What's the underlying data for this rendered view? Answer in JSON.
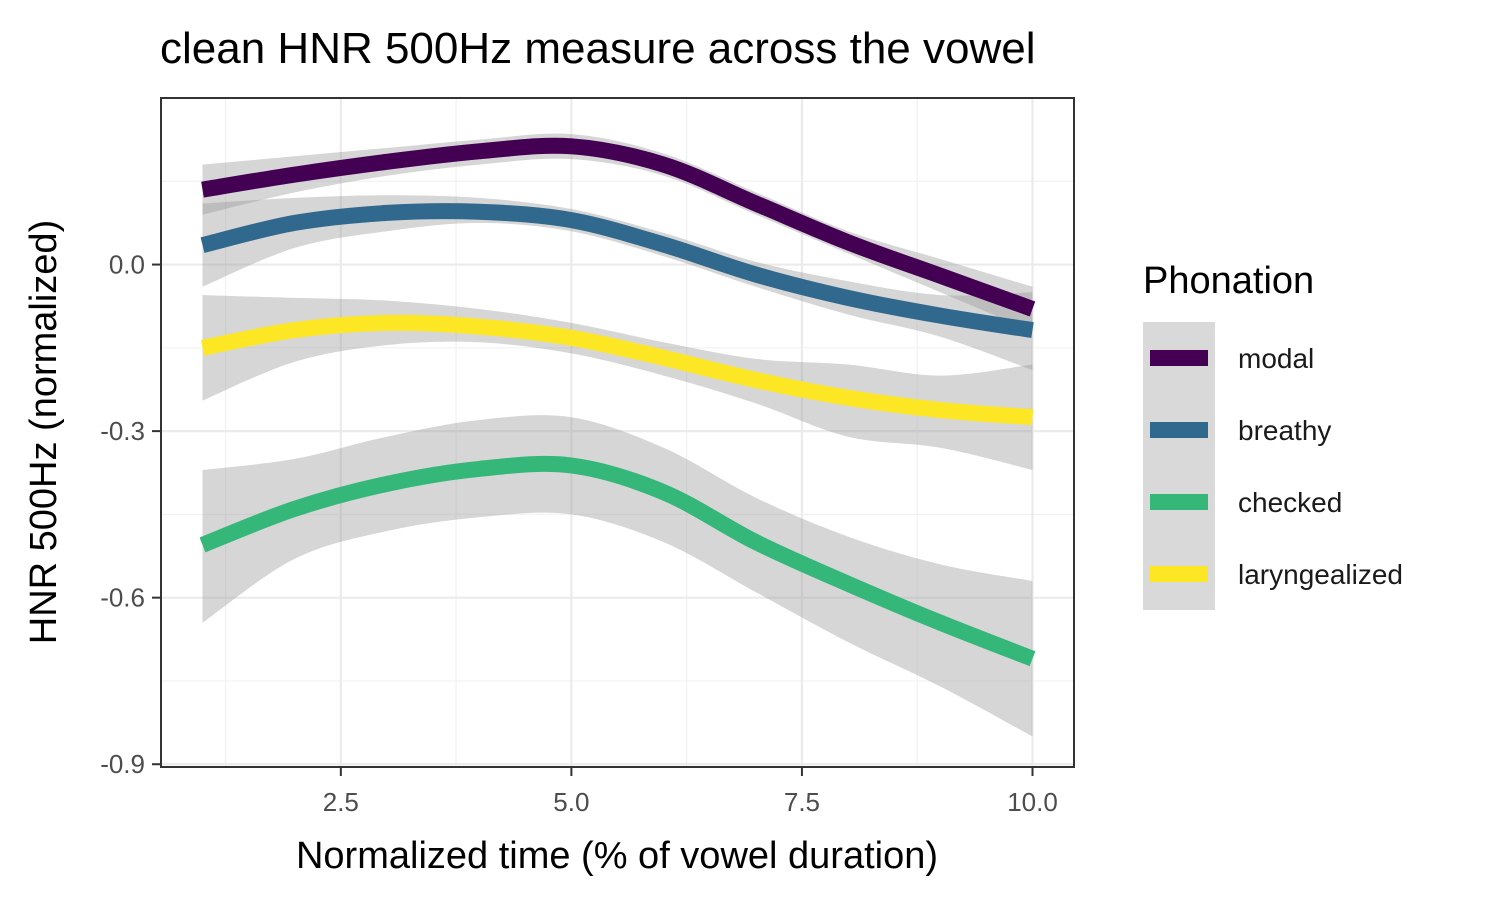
{
  "chart_data": {
    "type": "line",
    "title": "clean HNR 500Hz measure across the vowel",
    "xlabel": "Normalized time (% of vowel duration)",
    "ylabel": "HNR 500Hz (normalized)",
    "xlim": [
      0.55,
      10.45
    ],
    "ylim": [
      -0.905,
      0.3
    ],
    "x_ticks": [
      2.5,
      5.0,
      7.5,
      10.0
    ],
    "x_tick_labels": [
      "2.5",
      "5.0",
      "7.5",
      "10.0"
    ],
    "y_ticks": [
      -0.9,
      -0.6,
      -0.3,
      0.0
    ],
    "y_tick_labels": [
      "-0.9",
      "-0.6",
      "-0.3",
      "0.0"
    ],
    "grid": true,
    "legend": {
      "title": "Phonation",
      "position": "right"
    },
    "x": [
      1,
      2,
      3,
      4,
      5,
      6,
      7,
      8,
      9,
      10
    ],
    "series": [
      {
        "name": "modal",
        "color": "#440154",
        "values": [
          0.135,
          0.162,
          0.185,
          0.204,
          0.213,
          0.18,
          0.11,
          0.04,
          -0.02,
          -0.08
        ],
        "lower": [
          0.09,
          0.13,
          0.16,
          0.18,
          0.19,
          0.16,
          0.09,
          0.02,
          -0.05,
          -0.12
        ],
        "upper": [
          0.18,
          0.195,
          0.21,
          0.225,
          0.235,
          0.2,
          0.13,
          0.06,
          0.01,
          -0.04
        ]
      },
      {
        "name": "breathy",
        "color": "#31688e",
        "values": [
          0.035,
          0.075,
          0.093,
          0.095,
          0.08,
          0.036,
          -0.018,
          -0.06,
          -0.092,
          -0.118
        ],
        "lower": [
          -0.04,
          0.03,
          0.06,
          0.075,
          0.06,
          0.015,
          -0.04,
          -0.09,
          -0.13,
          -0.19
        ],
        "upper": [
          0.11,
          0.12,
          0.125,
          0.12,
          0.1,
          0.057,
          0.005,
          -0.03,
          -0.055,
          -0.05
        ]
      },
      {
        "name": "checked",
        "color": "#35b779",
        "values": [
          -0.505,
          -0.44,
          -0.395,
          -0.368,
          -0.362,
          -0.41,
          -0.5,
          -0.575,
          -0.645,
          -0.71
        ],
        "lower": [
          -0.645,
          -0.53,
          -0.48,
          -0.455,
          -0.45,
          -0.5,
          -0.59,
          -0.68,
          -0.76,
          -0.85
        ],
        "upper": [
          -0.37,
          -0.35,
          -0.31,
          -0.28,
          -0.275,
          -0.33,
          -0.42,
          -0.49,
          -0.54,
          -0.57
        ]
      },
      {
        "name": "laryngealized",
        "color": "#fde725",
        "values": [
          -0.15,
          -0.118,
          -0.105,
          -0.112,
          -0.132,
          -0.168,
          -0.208,
          -0.24,
          -0.262,
          -0.275
        ],
        "lower": [
          -0.245,
          -0.175,
          -0.145,
          -0.14,
          -0.16,
          -0.2,
          -0.25,
          -0.31,
          -0.33,
          -0.37
        ],
        "upper": [
          -0.055,
          -0.06,
          -0.065,
          -0.08,
          -0.105,
          -0.14,
          -0.17,
          -0.18,
          -0.2,
          -0.18
        ]
      }
    ]
  }
}
